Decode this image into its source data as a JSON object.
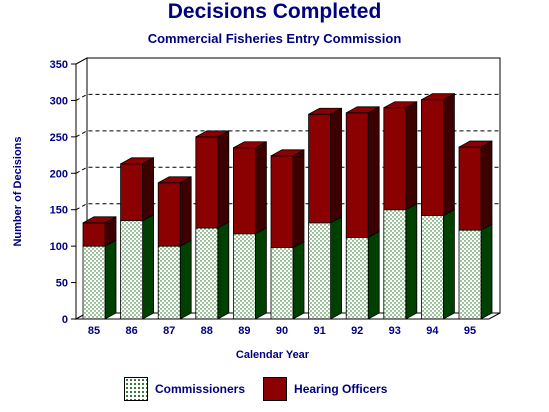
{
  "chart_data": {
    "type": "bar",
    "stacked": true,
    "three_d": true,
    "title": "Decisions Completed",
    "subtitle": "Commercial Fisheries Entry Commission",
    "xlabel": "Calendar Year",
    "ylabel": "Number of Decisions",
    "ylim": [
      0,
      350
    ],
    "yticks": [
      "0",
      "50",
      "100",
      "150",
      "200",
      "250",
      "300",
      "350"
    ],
    "categories": [
      "85",
      "86",
      "87",
      "88",
      "89",
      "90",
      "91",
      "92",
      "93",
      "94",
      "95"
    ],
    "grid": "dashed horizontal at 150, 200, 250, 300",
    "legend_placement": "bottom",
    "series": [
      {
        "name": "Commissioners",
        "pattern": "dotted",
        "front_color": "#ffffff",
        "side_color": "#004000",
        "values": [
          100,
          135,
          100,
          125,
          117,
          98,
          132,
          112,
          150,
          142,
          122
        ]
      },
      {
        "name": "Hearing Officers",
        "front_color": "#8b0000",
        "side_color": "#3d0000",
        "values": [
          32,
          78,
          87,
          125,
          118,
          126,
          149,
          171,
          140,
          159,
          114
        ]
      }
    ]
  }
}
